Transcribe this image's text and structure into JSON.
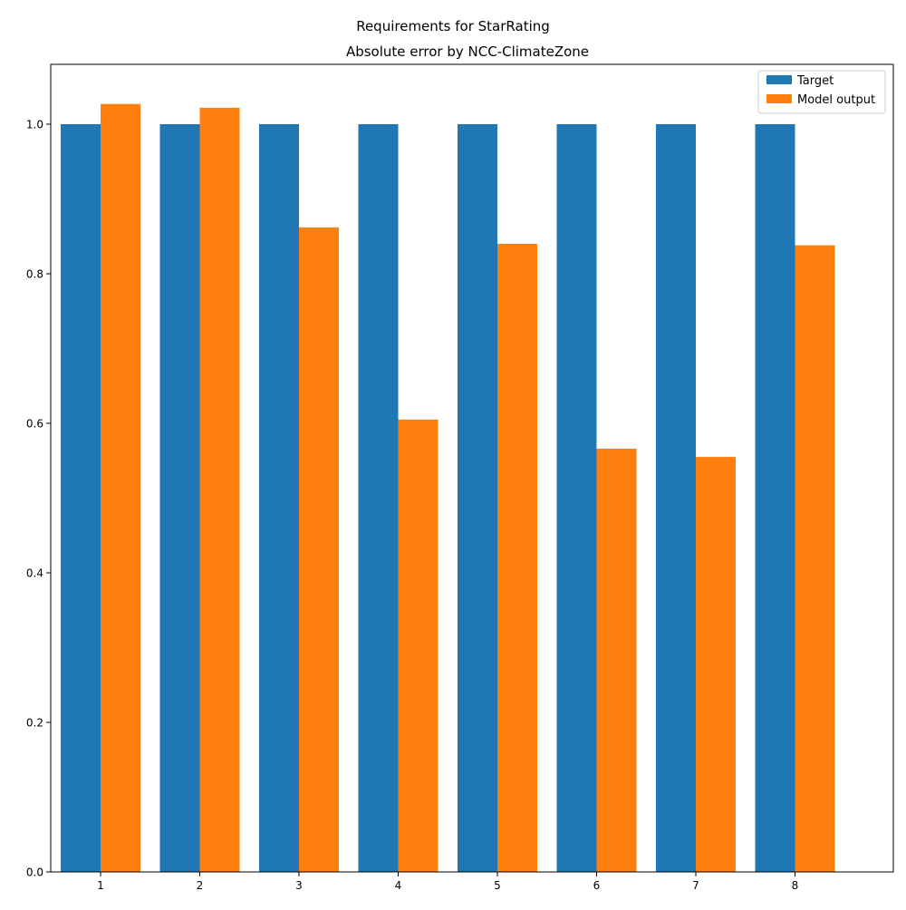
{
  "chart_data": {
    "type": "bar",
    "suptitle": "Requirements for StarRating",
    "title": "Absolute error by NCC-ClimateZone",
    "xlabel": "",
    "ylabel": "",
    "categories": [
      "1",
      "2",
      "3",
      "4",
      "5",
      "6",
      "7",
      "8"
    ],
    "series": [
      {
        "name": "Target",
        "color": "#1f77b4",
        "values": [
          1.0,
          1.0,
          1.0,
          1.0,
          1.0,
          1.0,
          1.0,
          1.0
        ]
      },
      {
        "name": "Model output",
        "color": "#ff7f0e",
        "values": [
          1.027,
          1.022,
          0.862,
          0.605,
          0.84,
          0.566,
          0.555,
          0.838
        ]
      }
    ],
    "ylim": [
      0,
      1.08
    ],
    "yticks": [
      0.0,
      0.2,
      0.4,
      0.6,
      0.8,
      1.0
    ],
    "ytick_labels": [
      "0.0",
      "0.2",
      "0.4",
      "0.6",
      "0.8",
      "1.0"
    ],
    "grid": false,
    "legend_position": "top-right"
  }
}
